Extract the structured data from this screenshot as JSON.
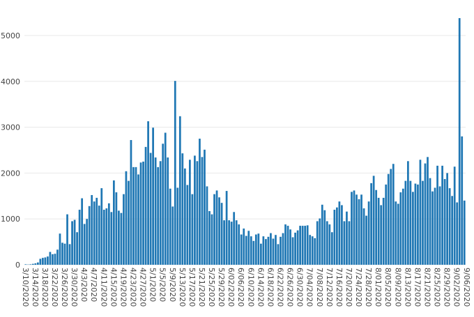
{
  "chart_data": {
    "type": "bar",
    "title": "",
    "xlabel": "",
    "ylabel": "",
    "ylim": [
      0,
      5500
    ],
    "y_ticks": [
      0,
      1000,
      2000,
      3000,
      4000,
      5000
    ],
    "grid": true,
    "legend": "none",
    "bar_color": "#1f77b4",
    "start_date": "2020-03-10",
    "x_tick_labels": [
      "3/10/2020",
      "3/14/2020",
      "3/18/2020",
      "3/22/2020",
      "3/26/2020",
      "3/30/2020",
      "4/3/2020",
      "4/7/2020",
      "4/11/2020",
      "4/15/2020",
      "4/19/2020",
      "4/23/2020",
      "4/27/2020",
      "5/1/2020",
      "5/5/2020",
      "5/9/2020",
      "5/13/2020",
      "5/17/2020",
      "5/21/2020",
      "5/25/2020",
      "5/29/2020",
      "6/02/2020",
      "6/06/2020",
      "6/10/2020",
      "6/14/2020",
      "6/18/2020",
      "6/22/2020",
      "6/26/2020",
      "6/30/2020",
      "7/04/2020",
      "7/08/2020",
      "7/12/2020",
      "7/16/2020",
      "7/20/2020",
      "7/24/2020",
      "7/28/2020",
      "8/01/2020",
      "8/05/2020",
      "8/09/2020",
      "8/13/2020",
      "8/17/2020",
      "8/21/2020",
      "8/25/2020",
      "8/29/2020",
      "9/02/2020",
      "9/06/2020"
    ],
    "values": [
      10,
      5,
      10,
      20,
      30,
      50,
      130,
      150,
      160,
      180,
      280,
      230,
      240,
      330,
      680,
      480,
      460,
      1100,
      450,
      950,
      980,
      710,
      1200,
      1450,
      890,
      1000,
      1280,
      1520,
      1380,
      1460,
      1290,
      1670,
      1200,
      1230,
      1340,
      1150,
      1840,
      1580,
      1180,
      1130,
      1540,
      2040,
      1830,
      2720,
      2130,
      2130,
      1970,
      2230,
      2250,
      2570,
      3130,
      2440,
      2990,
      2340,
      2130,
      2260,
      2640,
      2880,
      2340,
      1660,
      1270,
      4010,
      1680,
      3240,
      2430,
      2100,
      1740,
      2290,
      1540,
      2380,
      2260,
      2750,
      2350,
      2510,
      1710,
      1170,
      1100,
      1540,
      1620,
      1470,
      1350,
      970,
      1610,
      970,
      940,
      1150,
      970,
      880,
      660,
      790,
      630,
      740,
      620,
      520,
      660,
      680,
      460,
      620,
      560,
      610,
      690,
      570,
      650,
      450,
      610,
      690,
      880,
      850,
      770,
      600,
      700,
      750,
      850,
      850,
      850,
      860,
      650,
      620,
      580,
      950,
      1010,
      1310,
      1190,
      950,
      880,
      710,
      1200,
      1250,
      1380,
      1300,
      950,
      1160,
      950,
      1590,
      1620,
      1530,
      1430,
      1530,
      1230,
      1070,
      1380,
      1780,
      1940,
      1630,
      1460,
      1300,
      1460,
      1750,
      1980,
      2090,
      2200,
      1380,
      1330,
      1580,
      1660,
      1830,
      2260,
      1830,
      1590,
      1770,
      1750,
      2290,
      1830,
      2210,
      2350,
      1890,
      1600,
      1680,
      2160,
      1710,
      2160,
      1870,
      2000,
      1670,
      1500,
      2140,
      1360,
      5380,
      2800,
      1400
    ]
  }
}
